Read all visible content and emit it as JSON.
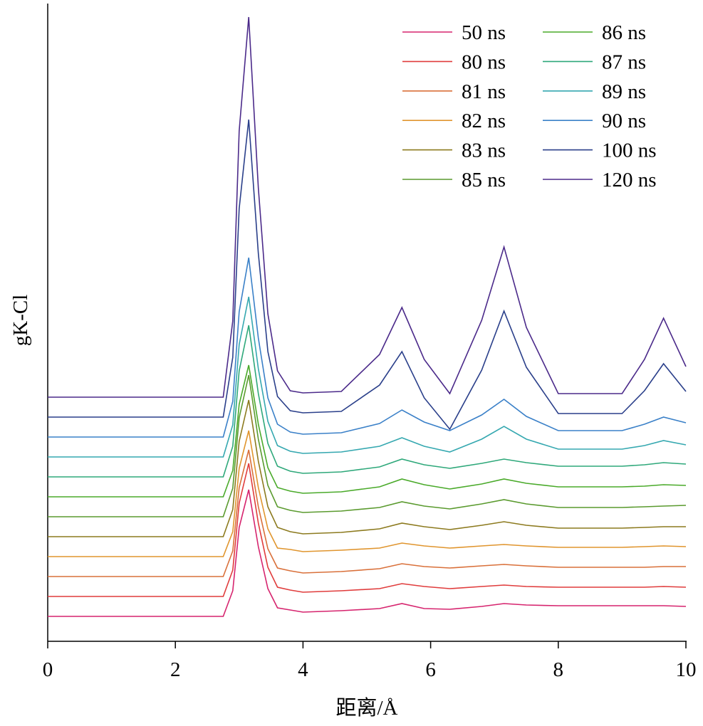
{
  "chart_data": {
    "type": "line",
    "xlabel": "距离/Å",
    "ylabel": "gK-Cl",
    "xlim": [
      0,
      10
    ],
    "xticks": [
      0,
      2,
      4,
      6,
      8,
      10
    ],
    "ylim": [
      0,
      896
    ],
    "legend": "upper right",
    "x": [
      0,
      2.75,
      2.9,
      3.0,
      3.15,
      3.3,
      3.45,
      3.6,
      3.8,
      4.0,
      4.6,
      5.2,
      5.55,
      5.9,
      6.3,
      6.8,
      7.15,
      7.5,
      8.0,
      9.0,
      9.35,
      9.65,
      10
    ],
    "series": [
      {
        "name": "50 ns",
        "color": "#d6246e",
        "values": [
          35,
          35,
          71,
          160,
          213,
          133,
          74,
          47,
          44,
          41,
          43,
          46,
          53,
          46,
          45,
          49,
          53,
          51,
          50,
          50,
          50,
          50,
          49
        ]
      },
      {
        "name": "80 ns",
        "color": "#e03c3c",
        "values": [
          63,
          63,
          100,
          194,
          250,
          166,
          104,
          76,
          72,
          69,
          71,
          74,
          81,
          77,
          74,
          77,
          79,
          77,
          76,
          76,
          76,
          77,
          76
        ]
      },
      {
        "name": "81 ns",
        "color": "#d9703a",
        "values": [
          91,
          91,
          127,
          216,
          269,
          189,
          130,
          103,
          99,
          96,
          98,
          102,
          109,
          105,
          103,
          106,
          108,
          106,
          104,
          104,
          104,
          105,
          105
        ]
      },
      {
        "name": "82 ns",
        "color": "#e0952e",
        "values": [
          119,
          119,
          154,
          243,
          296,
          216,
          158,
          131,
          129,
          126,
          128,
          131,
          138,
          134,
          131,
          134,
          136,
          134,
          132,
          132,
          133,
          134,
          133
        ]
      },
      {
        "name": "83 ns",
        "color": "#8c7a1e",
        "values": [
          147,
          147,
          185,
          281,
          339,
          253,
          189,
          160,
          154,
          151,
          153,
          158,
          166,
          161,
          157,
          163,
          168,
          163,
          159,
          159,
          160,
          161,
          161
        ]
      },
      {
        "name": "85 ns",
        "color": "#5a9a2e",
        "values": [
          175,
          175,
          215,
          314,
          374,
          284,
          219,
          189,
          184,
          181,
          183,
          188,
          196,
          190,
          186,
          193,
          199,
          193,
          188,
          188,
          189,
          190,
          191
        ]
      },
      {
        "name": "86 ns",
        "color": "#4aaa2a",
        "values": [
          203,
          203,
          240,
          333,
          388,
          305,
          244,
          216,
          211,
          208,
          210,
          217,
          228,
          220,
          214,
          221,
          228,
          222,
          217,
          217,
          218,
          220,
          219
        ]
      },
      {
        "name": "87 ns",
        "color": "#2ea87a",
        "values": [
          231,
          231,
          274,
          380,
          444,
          348,
          278,
          246,
          239,
          236,
          238,
          245,
          256,
          248,
          243,
          250,
          256,
          251,
          246,
          246,
          248,
          251,
          249
        ]
      },
      {
        "name": "89 ns",
        "color": "#35a8b0",
        "values": [
          259,
          259,
          304,
          417,
          484,
          383,
          309,
          275,
          267,
          264,
          266,
          274,
          286,
          274,
          266,
          284,
          302,
          284,
          270,
          270,
          275,
          282,
          276
        ]
      },
      {
        "name": "90 ns",
        "color": "#3a80c8",
        "values": [
          287,
          287,
          337,
          463,
          539,
          426,
          342,
          305,
          294,
          291,
          293,
          306,
          325,
          308,
          296,
          318,
          340,
          316,
          296,
          296,
          305,
          315,
          307
        ]
      },
      {
        "name": "100 ns",
        "color": "#2a3f8a",
        "values": [
          315,
          315,
          399,
          608,
          733,
          545,
          407,
          344,
          324,
          321,
          323,
          360,
          407,
          342,
          298,
          381,
          464,
          385,
          320,
          320,
          352,
          390,
          351
        ]
      },
      {
        "name": "120 ns",
        "color": "#4b2a8a",
        "values": [
          343,
          343,
          450,
          717,
          877,
          637,
          460,
          380,
          352,
          349,
          351,
          403,
          469,
          396,
          348,
          451,
          554,
          441,
          348,
          348,
          396,
          454,
          386
        ]
      }
    ]
  }
}
